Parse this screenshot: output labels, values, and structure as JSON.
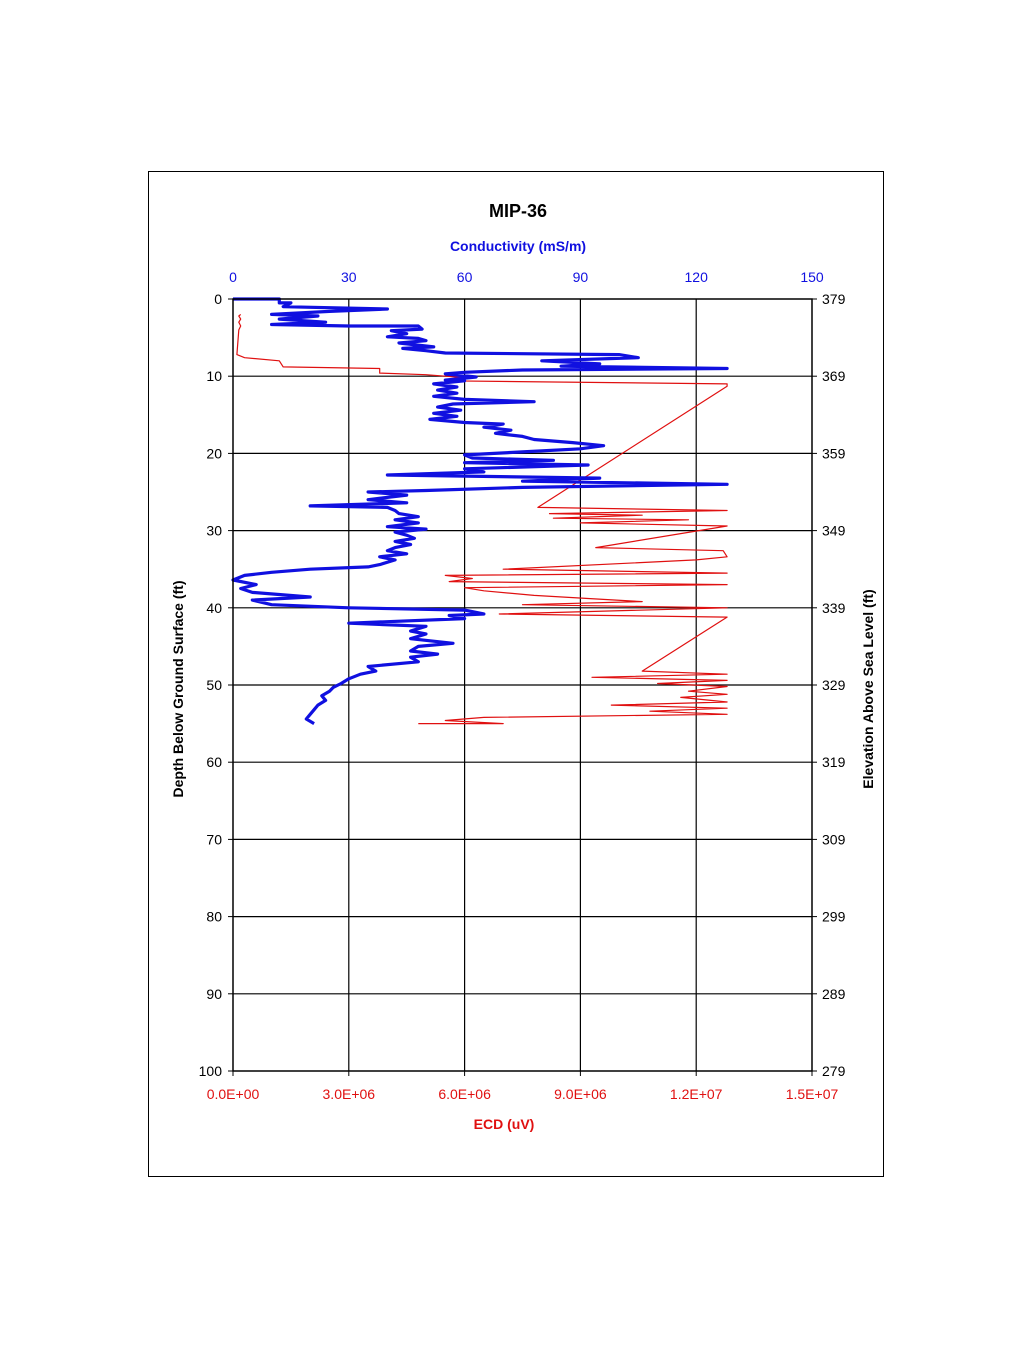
{
  "chart_data": {
    "type": "line",
    "title": "MIP-36",
    "top_axis": {
      "label": "Conductivity (mS/m)",
      "range": [
        0,
        150
      ],
      "ticks": [
        "0",
        "30",
        "60",
        "90",
        "120",
        "150"
      ],
      "color": "#1010e0"
    },
    "bottom_axis": {
      "label": "ECD (uV)",
      "range": [
        0,
        15000000
      ],
      "ticks": [
        "0.0E+00",
        "3.0E+06",
        "6.0E+06",
        "9.0E+06",
        "1.2E+07",
        "1.5E+07"
      ],
      "color": "#e01010"
    },
    "left_axis": {
      "label": "Depth Below Ground Surface (ft)",
      "range": [
        0,
        100
      ],
      "inverted": true,
      "ticks": [
        "0",
        "10",
        "20",
        "30",
        "40",
        "50",
        "60",
        "70",
        "80",
        "90",
        "100"
      ]
    },
    "right_axis": {
      "label": "Elevation Above Sea Level (ft)",
      "ticks": [
        "379",
        "369",
        "359",
        "349",
        "339",
        "329",
        "319",
        "309",
        "299",
        "289",
        "279"
      ]
    },
    "grid": true,
    "series": [
      {
        "axis": "top",
        "color": "#1010e0",
        "points": [
          [
            0,
            0
          ],
          [
            12,
            0
          ],
          [
            12,
            0.5
          ],
          [
            15,
            0.5
          ],
          [
            13,
            1.0
          ],
          [
            40,
            1.3
          ],
          [
            25,
            1.6
          ],
          [
            10,
            2.0
          ],
          [
            22,
            2.2
          ],
          [
            12,
            2.6
          ],
          [
            24,
            3.0
          ],
          [
            10,
            3.3
          ],
          [
            30,
            3.5
          ],
          [
            48,
            3.5
          ],
          [
            49,
            3.9
          ],
          [
            41,
            4.1
          ],
          [
            45,
            4.5
          ],
          [
            40,
            4.9
          ],
          [
            48,
            5.1
          ],
          [
            50,
            5.4
          ],
          [
            43,
            5.7
          ],
          [
            52,
            6.2
          ],
          [
            44,
            6.4
          ],
          [
            50,
            6.7
          ],
          [
            55,
            7.0
          ],
          [
            100,
            7.2
          ],
          [
            105,
            7.6
          ],
          [
            80,
            8.0
          ],
          [
            95,
            8.4
          ],
          [
            85,
            8.7
          ],
          [
            128,
            9.0
          ],
          [
            75,
            9.2
          ],
          [
            60,
            9.5
          ],
          [
            55,
            9.7
          ],
          [
            63,
            10.1
          ],
          [
            55,
            10.5
          ],
          [
            60,
            10.6
          ],
          [
            52,
            11.0
          ],
          [
            58,
            11.4
          ],
          [
            53,
            11.8
          ],
          [
            58,
            12.2
          ],
          [
            52,
            12.6
          ],
          [
            60,
            13.0
          ],
          [
            78,
            13.3
          ],
          [
            57,
            13.6
          ],
          [
            53,
            14.0
          ],
          [
            59,
            14.4
          ],
          [
            52,
            14.8
          ],
          [
            58,
            15.2
          ],
          [
            51,
            15.6
          ],
          [
            60,
            16.0
          ],
          [
            70,
            16.2
          ],
          [
            65,
            16.6
          ],
          [
            72,
            17.0
          ],
          [
            68,
            17.4
          ],
          [
            75,
            17.8
          ],
          [
            78,
            18.2
          ],
          [
            88,
            18.6
          ],
          [
            96,
            19.0
          ],
          [
            90,
            19.4
          ],
          [
            75,
            19.8
          ],
          [
            60,
            20.2
          ],
          [
            62,
            20.6
          ],
          [
            83,
            20.9
          ],
          [
            60,
            21.2
          ],
          [
            92,
            21.5
          ],
          [
            60,
            22.0
          ],
          [
            65,
            22.4
          ],
          [
            40,
            22.8
          ],
          [
            95,
            23.2
          ],
          [
            75,
            23.6
          ],
          [
            128,
            24.0
          ],
          [
            75,
            24.4
          ],
          [
            50,
            24.8
          ],
          [
            35,
            25.0
          ],
          [
            45,
            25.4
          ],
          [
            35,
            26.0
          ],
          [
            45,
            26.4
          ],
          [
            20,
            26.8
          ],
          [
            40,
            27.0
          ],
          [
            42,
            27.4
          ],
          [
            43,
            27.8
          ],
          [
            48,
            28.2
          ],
          [
            42,
            28.6
          ],
          [
            48,
            29.0
          ],
          [
            40,
            29.5
          ],
          [
            50,
            29.8
          ],
          [
            42,
            30.2
          ],
          [
            45,
            30.6
          ],
          [
            47,
            31.0
          ],
          [
            42,
            31.4
          ],
          [
            46,
            31.8
          ],
          [
            42,
            32.2
          ],
          [
            40,
            32.6
          ],
          [
            45,
            33.0
          ],
          [
            38,
            33.4
          ],
          [
            42,
            33.8
          ],
          [
            38,
            34.4
          ],
          [
            35,
            34.7
          ],
          [
            20,
            35.0
          ],
          [
            10,
            35.4
          ],
          [
            3,
            35.8
          ],
          [
            0,
            36.4
          ],
          [
            6,
            37.0
          ],
          [
            2,
            37.5
          ],
          [
            5,
            38.0
          ],
          [
            20,
            38.6
          ],
          [
            5,
            39.0
          ],
          [
            10,
            39.6
          ],
          [
            30,
            40.0
          ],
          [
            60,
            40.3
          ],
          [
            65,
            40.8
          ],
          [
            56,
            41.0
          ],
          [
            60,
            41.4
          ],
          [
            30,
            42.0
          ],
          [
            50,
            42.4
          ],
          [
            46,
            43.0
          ],
          [
            50,
            43.4
          ],
          [
            46,
            44.0
          ],
          [
            57,
            44.6
          ],
          [
            48,
            45.0
          ],
          [
            46,
            45.6
          ],
          [
            53,
            46.0
          ],
          [
            46,
            46.4
          ],
          [
            48,
            47.0
          ],
          [
            35,
            47.6
          ],
          [
            37,
            48.2
          ],
          [
            33,
            48.6
          ],
          [
            30,
            49.2
          ],
          [
            28,
            49.8
          ],
          [
            26,
            50.3
          ],
          [
            25,
            50.8
          ],
          [
            23,
            51.4
          ],
          [
            24,
            52.0
          ],
          [
            22,
            52.6
          ],
          [
            21,
            53.2
          ],
          [
            20,
            53.8
          ],
          [
            19,
            54.4
          ],
          [
            21,
            55.0
          ]
        ]
      },
      {
        "axis": "bottom",
        "color": "#e01010",
        "points": [
          [
            200000,
            2.0
          ],
          [
            150000,
            2.2
          ],
          [
            200000,
            2.6
          ],
          [
            150000,
            3.0
          ],
          [
            200000,
            3.5
          ],
          [
            150000,
            4.0
          ],
          [
            100000,
            7.2
          ],
          [
            300000,
            7.6
          ],
          [
            1200000,
            8.0
          ],
          [
            1300000,
            8.8
          ],
          [
            3800000,
            9.0
          ],
          [
            3800000,
            9.6
          ],
          [
            5000000,
            9.8
          ],
          [
            6000000,
            10.2
          ],
          [
            5500000,
            10.6
          ],
          [
            12800000,
            11.0
          ],
          [
            12800000,
            11.3
          ],
          [
            7900000,
            27.0
          ],
          [
            12800000,
            27.4
          ],
          [
            8200000,
            27.8
          ],
          [
            10600000,
            28.0
          ],
          [
            8300000,
            28.4
          ],
          [
            11800000,
            28.6
          ],
          [
            9000000,
            29.0
          ],
          [
            12800000,
            29.4
          ],
          [
            9400000,
            32.2
          ],
          [
            12700000,
            32.6
          ],
          [
            12800000,
            33.4
          ],
          [
            12000000,
            33.8
          ],
          [
            7000000,
            35.0
          ],
          [
            12800000,
            35.5
          ],
          [
            5500000,
            35.8
          ],
          [
            6200000,
            36.2
          ],
          [
            5600000,
            36.6
          ],
          [
            12800000,
            37.0
          ],
          [
            6000000,
            37.4
          ],
          [
            6500000,
            37.8
          ],
          [
            7800000,
            38.4
          ],
          [
            9200000,
            38.8
          ],
          [
            10600000,
            39.2
          ],
          [
            7500000,
            39.6
          ],
          [
            12800000,
            40.0
          ],
          [
            6900000,
            40.8
          ],
          [
            12800000,
            41.2
          ],
          [
            10600000,
            48.2
          ],
          [
            12800000,
            48.6
          ],
          [
            9300000,
            49.0
          ],
          [
            12800000,
            49.4
          ],
          [
            11000000,
            49.8
          ],
          [
            12800000,
            50.2
          ],
          [
            11800000,
            50.8
          ],
          [
            12800000,
            51.2
          ],
          [
            11600000,
            51.6
          ],
          [
            12800000,
            52.2
          ],
          [
            9800000,
            52.6
          ],
          [
            12800000,
            53.0
          ],
          [
            10800000,
            53.4
          ],
          [
            12800000,
            53.8
          ],
          [
            6500000,
            54.2
          ],
          [
            5500000,
            54.6
          ],
          [
            7000000,
            55.0
          ],
          [
            4800000,
            55.0
          ]
        ]
      }
    ]
  }
}
